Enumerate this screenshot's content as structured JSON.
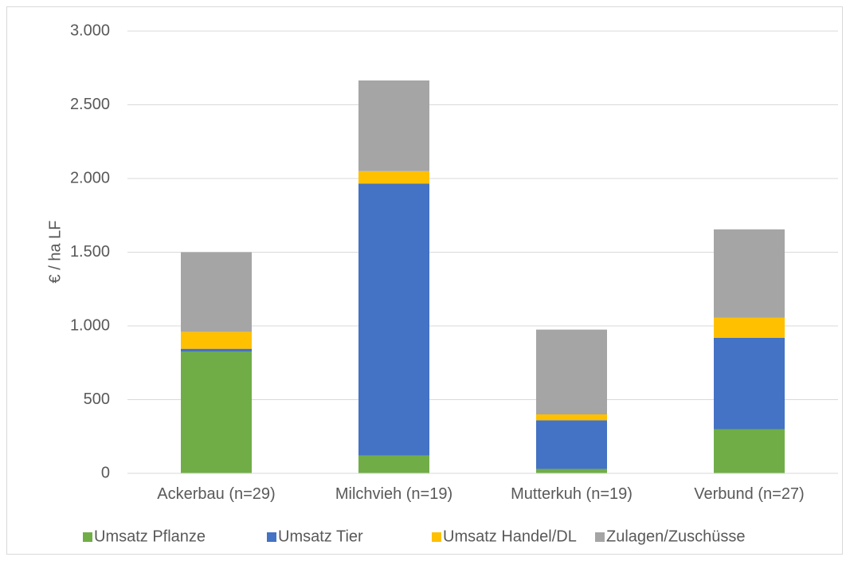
{
  "chart_data": {
    "type": "bar",
    "stacked": true,
    "title": "",
    "xlabel": "",
    "ylabel": "€ / ha LF",
    "ylim": [
      0,
      3000
    ],
    "yticks": [
      0,
      500,
      1000,
      1500,
      2000,
      2500,
      3000
    ],
    "ytick_labels": [
      "0",
      "500",
      "1.000",
      "1.500",
      "2.000",
      "2.500",
      "3.000"
    ],
    "grid": true,
    "legend_position": "bottom",
    "categories": [
      "Ackerbau (n=29)",
      "Milchvieh (n=19)",
      "Mutterkuh (n=19)",
      "Verbund (n=27)"
    ],
    "series": [
      {
        "name": "Umsatz Pflanze",
        "color": "#70ad47",
        "values": [
          825,
          120,
          30,
          300
        ]
      },
      {
        "name": "Umsatz Tier",
        "color": "#4472c4",
        "values": [
          20,
          1845,
          330,
          620
        ]
      },
      {
        "name": "Umsatz Handel/DL",
        "color": "#ffc000",
        "values": [
          115,
          85,
          40,
          135
        ]
      },
      {
        "name": "Zulagen/Zuschüsse",
        "color": "#a5a5a5",
        "values": [
          540,
          615,
          575,
          600
        ]
      }
    ]
  }
}
